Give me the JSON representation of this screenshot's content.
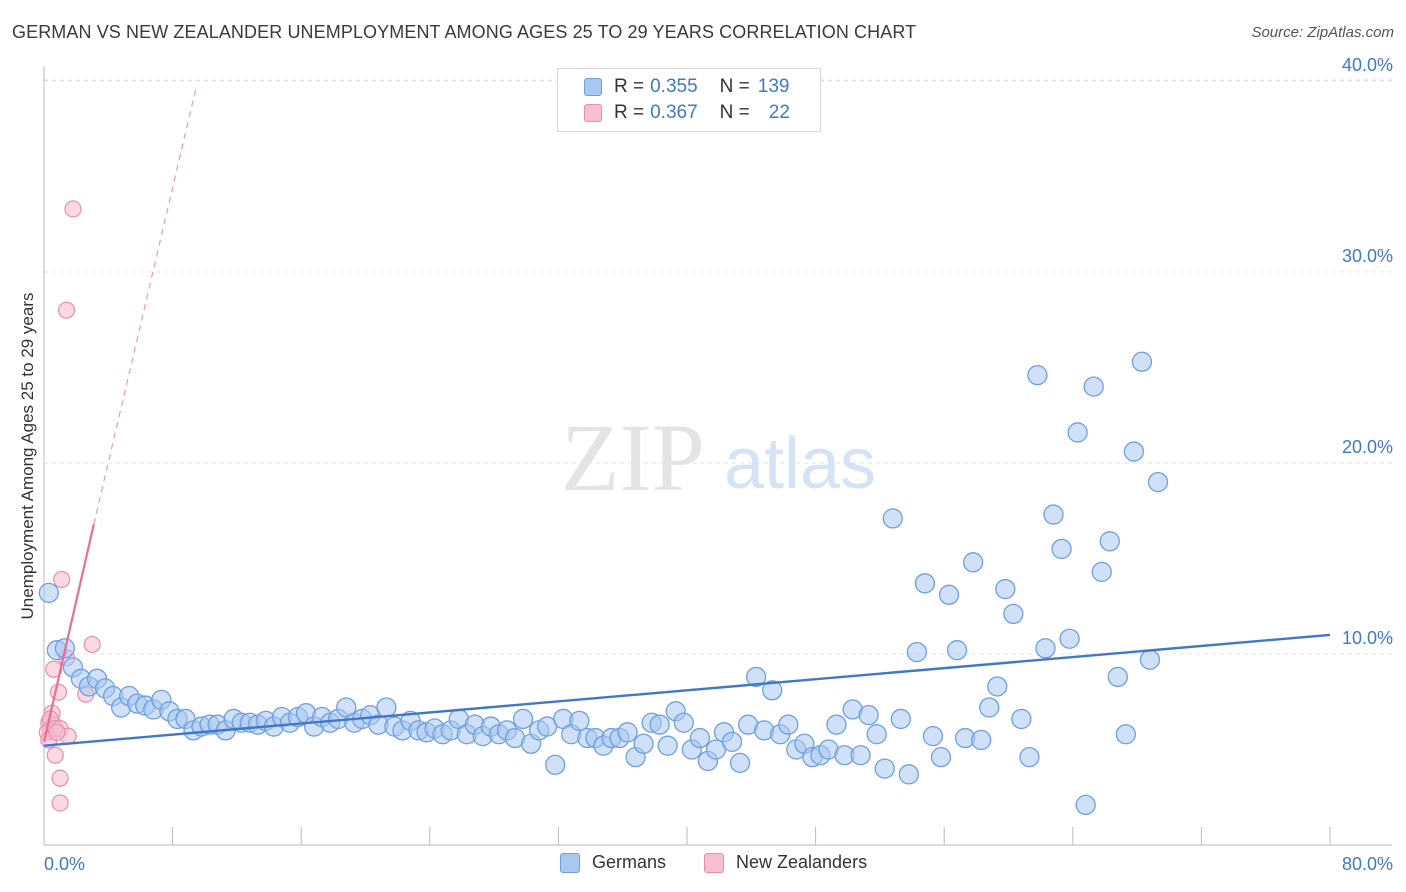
{
  "title": "GERMAN VS NEW ZEALANDER UNEMPLOYMENT AMONG AGES 25 TO 29 YEARS CORRELATION CHART",
  "source": "Source: ZipAtlas.com",
  "watermark": {
    "zip": "ZIP",
    "atlas": "atlas"
  },
  "legend": {
    "rows": [
      {
        "r_label": "R =",
        "r_value": "0.355",
        "n_label": "N =",
        "n_value": "139",
        "color": "#a9c8f0",
        "border": "#6f9fe0"
      },
      {
        "r_label": "R =",
        "r_value": "0.367",
        "n_label": "N =",
        "n_value": "22",
        "color": "#f7bfd0",
        "border": "#e98fac"
      }
    ]
  },
  "bottom_legend": [
    {
      "label": "Germans",
      "color": "#a9c8f0",
      "border": "#6f9fe0"
    },
    {
      "label": "New Zealanders",
      "color": "#f7bfd0",
      "border": "#e98fac"
    }
  ],
  "chart_data": {
    "type": "scatter",
    "title": "GERMAN VS NEW ZEALANDER UNEMPLOYMENT AMONG AGES 25 TO 29 YEARS CORRELATION CHART",
    "xlabel": "",
    "ylabel": "Unemployment Among Ages 25 to 29 years",
    "xlim": [
      0,
      80
    ],
    "ylim": [
      0,
      40
    ],
    "x_tick_labels": [
      "0.0%",
      "80.0%"
    ],
    "y_tick_labels": [
      {
        "value": 10,
        "label": "10.0%"
      },
      {
        "value": 20,
        "label": "20.0%"
      },
      {
        "value": 30,
        "label": "30.0%"
      },
      {
        "value": 40,
        "label": "40.0%"
      }
    ],
    "grid": true,
    "series": [
      {
        "name": "Germans",
        "color": "#a9c8f0",
        "border": "#6f9fe0",
        "trend": {
          "x": [
            0,
            80
          ],
          "y": [
            5.2,
            11.0
          ],
          "color": "#3f78c9"
        },
        "points": [
          [
            0.3,
            13.2
          ],
          [
            0.8,
            10.2
          ],
          [
            1.3,
            10.3
          ],
          [
            1.8,
            9.3
          ],
          [
            2.3,
            8.7
          ],
          [
            2.8,
            8.3
          ],
          [
            3.3,
            8.7
          ],
          [
            3.8,
            8.2
          ],
          [
            4.3,
            7.8
          ],
          [
            4.8,
            7.2
          ],
          [
            5.3,
            7.8
          ],
          [
            5.8,
            7.4
          ],
          [
            6.3,
            7.3
          ],
          [
            6.8,
            7.1
          ],
          [
            7.3,
            7.6
          ],
          [
            7.8,
            7.0
          ],
          [
            8.3,
            6.6
          ],
          [
            8.8,
            6.6
          ],
          [
            9.3,
            6.0
          ],
          [
            9.8,
            6.2
          ],
          [
            10.3,
            6.3
          ],
          [
            10.8,
            6.3
          ],
          [
            11.3,
            6.0
          ],
          [
            11.8,
            6.6
          ],
          [
            12.3,
            6.4
          ],
          [
            12.8,
            6.4
          ],
          [
            13.3,
            6.3
          ],
          [
            13.8,
            6.5
          ],
          [
            14.3,
            6.2
          ],
          [
            14.8,
            6.7
          ],
          [
            15.3,
            6.4
          ],
          [
            15.8,
            6.7
          ],
          [
            16.3,
            6.9
          ],
          [
            16.8,
            6.2
          ],
          [
            17.3,
            6.7
          ],
          [
            17.8,
            6.4
          ],
          [
            18.3,
            6.6
          ],
          [
            18.8,
            7.2
          ],
          [
            19.3,
            6.4
          ],
          [
            19.8,
            6.6
          ],
          [
            20.3,
            6.8
          ],
          [
            20.8,
            6.3
          ],
          [
            21.3,
            7.2
          ],
          [
            21.8,
            6.2
          ],
          [
            22.3,
            6.0
          ],
          [
            22.8,
            6.5
          ],
          [
            23.3,
            6.0
          ],
          [
            23.8,
            5.9
          ],
          [
            24.3,
            6.1
          ],
          [
            24.8,
            5.8
          ],
          [
            25.3,
            6.0
          ],
          [
            25.8,
            6.6
          ],
          [
            26.3,
            5.8
          ],
          [
            26.8,
            6.3
          ],
          [
            27.3,
            5.7
          ],
          [
            27.8,
            6.2
          ],
          [
            28.3,
            5.8
          ],
          [
            28.8,
            6.0
          ],
          [
            29.3,
            5.6
          ],
          [
            29.8,
            6.6
          ],
          [
            30.3,
            5.3
          ],
          [
            30.8,
            6.0
          ],
          [
            31.3,
            6.2
          ],
          [
            31.8,
            4.2
          ],
          [
            32.3,
            6.6
          ],
          [
            32.8,
            5.8
          ],
          [
            33.3,
            6.5
          ],
          [
            33.8,
            5.6
          ],
          [
            34.3,
            5.6
          ],
          [
            34.8,
            5.2
          ],
          [
            35.3,
            5.6
          ],
          [
            35.8,
            5.6
          ],
          [
            36.3,
            5.9
          ],
          [
            36.8,
            4.6
          ],
          [
            37.3,
            5.3
          ],
          [
            37.8,
            6.4
          ],
          [
            38.3,
            6.3
          ],
          [
            38.8,
            5.2
          ],
          [
            39.3,
            7.0
          ],
          [
            39.8,
            6.4
          ],
          [
            40.3,
            5.0
          ],
          [
            40.8,
            5.6
          ],
          [
            41.3,
            4.4
          ],
          [
            41.8,
            5.0
          ],
          [
            42.3,
            5.9
          ],
          [
            42.8,
            5.4
          ],
          [
            43.3,
            4.3
          ],
          [
            43.8,
            6.3
          ],
          [
            44.3,
            8.8
          ],
          [
            44.8,
            6.0
          ],
          [
            45.3,
            8.1
          ],
          [
            45.8,
            5.8
          ],
          [
            46.3,
            6.3
          ],
          [
            46.8,
            5.0
          ],
          [
            47.3,
            5.3
          ],
          [
            47.8,
            4.6
          ],
          [
            48.3,
            4.7
          ],
          [
            48.8,
            5.0
          ],
          [
            49.3,
            6.3
          ],
          [
            49.8,
            4.7
          ],
          [
            50.3,
            7.1
          ],
          [
            50.8,
            4.7
          ],
          [
            51.3,
            6.8
          ],
          [
            51.8,
            5.8
          ],
          [
            52.3,
            4.0
          ],
          [
            52.8,
            17.1
          ],
          [
            53.3,
            6.6
          ],
          [
            53.8,
            3.7
          ],
          [
            54.3,
            10.1
          ],
          [
            54.8,
            13.7
          ],
          [
            55.3,
            5.7
          ],
          [
            55.8,
            4.6
          ],
          [
            56.3,
            13.1
          ],
          [
            56.8,
            10.2
          ],
          [
            57.3,
            5.6
          ],
          [
            57.8,
            14.8
          ],
          [
            58.3,
            5.5
          ],
          [
            58.8,
            7.2
          ],
          [
            59.3,
            8.3
          ],
          [
            59.8,
            13.4
          ],
          [
            60.3,
            12.1
          ],
          [
            60.8,
            6.6
          ],
          [
            61.3,
            4.6
          ],
          [
            61.8,
            24.6
          ],
          [
            62.3,
            10.3
          ],
          [
            62.8,
            17.3
          ],
          [
            63.3,
            15.5
          ],
          [
            63.8,
            10.8
          ],
          [
            64.3,
            21.6
          ],
          [
            64.8,
            2.1
          ],
          [
            65.3,
            24.0
          ],
          [
            65.8,
            14.3
          ],
          [
            66.3,
            15.9
          ],
          [
            66.8,
            8.8
          ],
          [
            67.3,
            5.8
          ],
          [
            67.8,
            20.6
          ],
          [
            68.3,
            25.3
          ],
          [
            68.8,
            9.7
          ],
          [
            69.3,
            19.0
          ]
        ]
      },
      {
        "name": "New Zealanders",
        "color": "#f7bfd0",
        "border": "#e98fac",
        "trend": {
          "x": [
            0,
            3.1
          ],
          "y": [
            5.4,
            16.8
          ],
          "ext_x": [
            3.1,
            9.5
          ],
          "ext_y": [
            16.8,
            39.8
          ],
          "color": "#e86e95"
        },
        "points": [
          [
            1.8,
            33.3
          ],
          [
            1.4,
            28.0
          ],
          [
            1.1,
            13.9
          ],
          [
            3.0,
            10.5
          ],
          [
            1.4,
            9.8
          ],
          [
            0.6,
            9.2
          ],
          [
            2.6,
            7.9
          ],
          [
            0.9,
            8.0
          ],
          [
            0.5,
            6.9
          ],
          [
            0.3,
            6.4
          ],
          [
            0.4,
            6.0
          ],
          [
            0.6,
            6.3
          ],
          [
            0.2,
            5.9
          ],
          [
            0.3,
            5.5
          ],
          [
            0.4,
            6.6
          ],
          [
            0.7,
            6.1
          ],
          [
            1.0,
            6.1
          ],
          [
            1.5,
            5.7
          ],
          [
            0.8,
            5.9
          ],
          [
            0.7,
            4.7
          ],
          [
            1.0,
            3.5
          ],
          [
            1.0,
            2.2
          ]
        ]
      }
    ]
  }
}
